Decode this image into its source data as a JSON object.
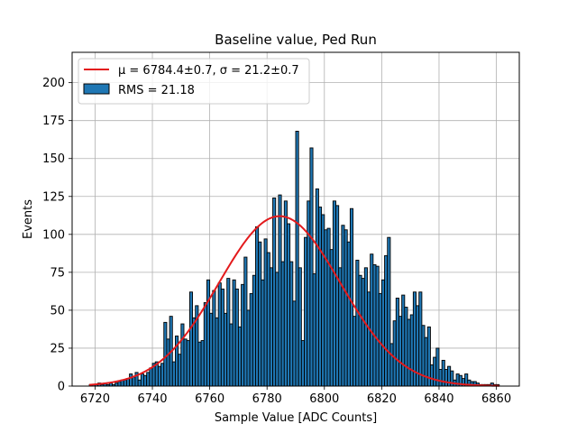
{
  "chart_data": {
    "type": "bar",
    "title": "Baseline value, Ped Run",
    "xlabel": "Sample Value [ADC Counts]",
    "ylabel": "Events",
    "xlim": [
      6712,
      6868
    ],
    "ylim": [
      0,
      220
    ],
    "xticks": [
      6720,
      6740,
      6760,
      6780,
      6800,
      6820,
      6840,
      6860
    ],
    "yticks": [
      0,
      25,
      50,
      75,
      100,
      125,
      150,
      175,
      200
    ],
    "grid": true,
    "legend_position": "top-left",
    "histogram": {
      "name": "RMS = 21.18",
      "color": "#1f77b4",
      "edge_color": "#000000",
      "bin_start": 6718,
      "bin_width": 1,
      "counts": [
        1,
        1,
        1,
        2,
        1,
        2,
        1,
        2,
        1,
        2,
        3,
        4,
        4,
        5,
        8,
        6,
        9,
        4,
        8,
        7,
        9,
        12,
        15,
        16,
        13,
        15,
        42,
        31,
        46,
        16,
        33,
        21,
        41,
        31,
        30,
        62,
        45,
        53,
        29,
        30,
        55,
        70,
        48,
        63,
        45,
        68,
        64,
        48,
        71,
        41,
        70,
        64,
        39,
        67,
        85,
        50,
        61,
        73,
        105,
        95,
        70,
        97,
        88,
        78,
        124,
        75,
        126,
        82,
        122,
        107,
        82,
        56,
        168,
        78,
        30,
        98,
        122,
        157,
        74,
        130,
        118,
        113,
        103,
        104,
        90,
        122,
        119,
        78,
        106,
        103,
        95,
        117,
        46,
        83,
        73,
        71,
        78,
        62,
        87,
        80,
        79,
        61,
        70,
        86,
        98,
        28,
        43,
        58,
        46,
        60,
        52,
        44,
        47,
        62,
        53,
        62,
        40,
        32,
        39,
        14,
        19,
        25,
        11,
        17,
        11,
        13,
        10,
        4,
        8,
        7,
        5,
        8,
        4,
        3,
        3,
        2,
        1,
        1,
        1,
        1,
        2,
        1,
        1,
        0
      ]
    },
    "fit": {
      "name": "$\\mu = 6784.4{\\pm}0.7$, $\\sigma = 21.2{\\pm}0.7$",
      "legend_label": "μ = 6784.4±0.7, σ = 21.2±0.7",
      "type": "gaussian",
      "mu": 6784.4,
      "sigma": 21.2,
      "amplitude": 112,
      "x_range": [
        6718,
        6861
      ],
      "color": "#e31a1c"
    }
  }
}
